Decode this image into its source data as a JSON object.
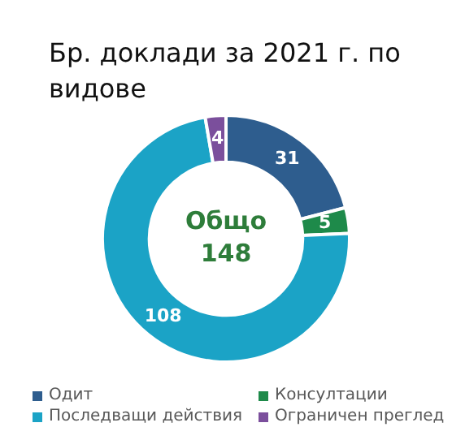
{
  "chart_data": {
    "type": "donut",
    "title": "Бр. доклади за 2021 г. по видове",
    "categories": [
      "Одит",
      "Консултации",
      "Последващи действия",
      "Ограничен преглед"
    ],
    "values": [
      31,
      5,
      108,
      4
    ],
    "colors": [
      "#2e5d8e",
      "#1e8a4a",
      "#1ba3c6",
      "#7b4f9c"
    ],
    "data_labels": true,
    "legend": "bottom",
    "annotations": [
      "Общо 148"
    ]
  }
}
